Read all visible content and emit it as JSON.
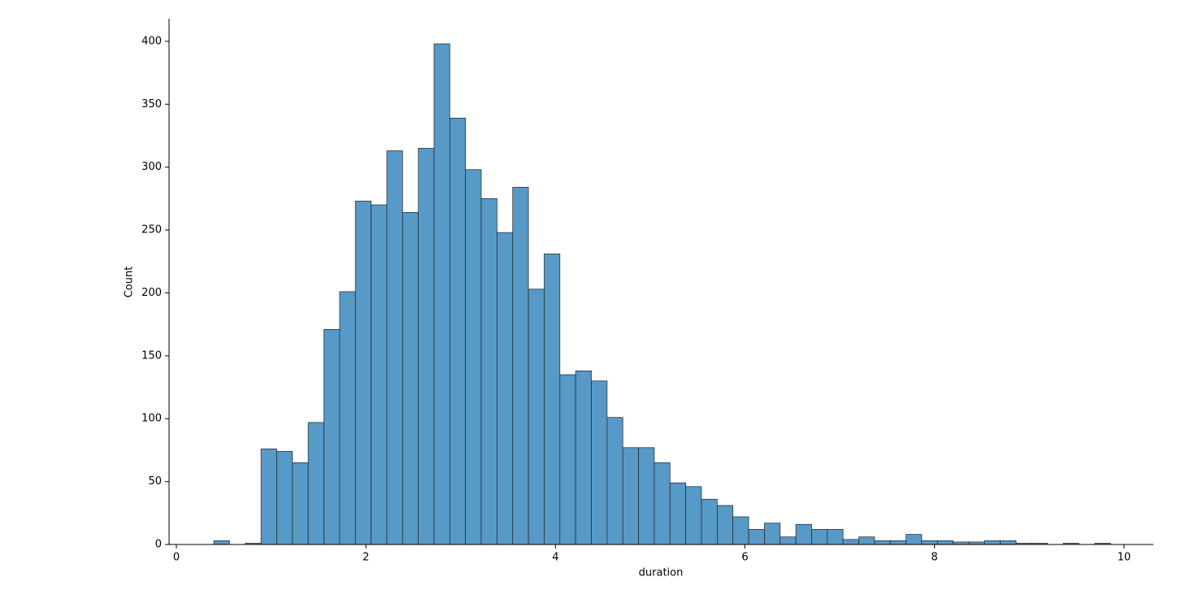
{
  "chart_data": {
    "type": "histogram",
    "x_label": "duration",
    "y_label": "Count",
    "bins": [
      0.395,
      0.561,
      0.727,
      0.893,
      1.059,
      1.225,
      1.391,
      1.557,
      1.723,
      1.889,
      2.055,
      2.221,
      2.387,
      2.553,
      2.719,
      2.885,
      3.051,
      3.217,
      3.383,
      3.549,
      3.715,
      3.881,
      4.047,
      4.213,
      4.379,
      4.545,
      4.711,
      4.877,
      5.043,
      5.209,
      5.375,
      5.541,
      5.707,
      5.873,
      6.039,
      6.205,
      6.371,
      6.537,
      6.703,
      6.869,
      7.035,
      7.201,
      7.367,
      7.533,
      7.699,
      7.865,
      8.031,
      8.197,
      8.363,
      8.529,
      8.695,
      8.861,
      9.027,
      9.193,
      9.359,
      9.525,
      9.691,
      9.857
    ],
    "values": [
      3,
      0,
      1,
      76,
      74,
      65,
      97,
      171,
      201,
      273,
      270,
      313,
      264,
      315,
      398,
      339,
      298,
      275,
      248,
      284,
      203,
      231,
      135,
      138,
      130,
      101,
      77,
      77,
      65,
      49,
      46,
      36,
      31,
      22,
      12,
      17,
      6,
      16,
      12,
      12,
      4,
      6,
      3,
      3,
      8,
      3,
      3,
      2,
      2,
      3,
      3,
      1,
      1,
      0,
      1,
      0,
      1
    ],
    "color": "#5799c7",
    "xlim": [
      -0.077,
      10.31
    ],
    "xticks": [
      0,
      2,
      4,
      6,
      8,
      10
    ],
    "ylim": [
      0,
      418
    ],
    "yticks": [
      0,
      50,
      100,
      150,
      200,
      250,
      300,
      350,
      400
    ]
  }
}
